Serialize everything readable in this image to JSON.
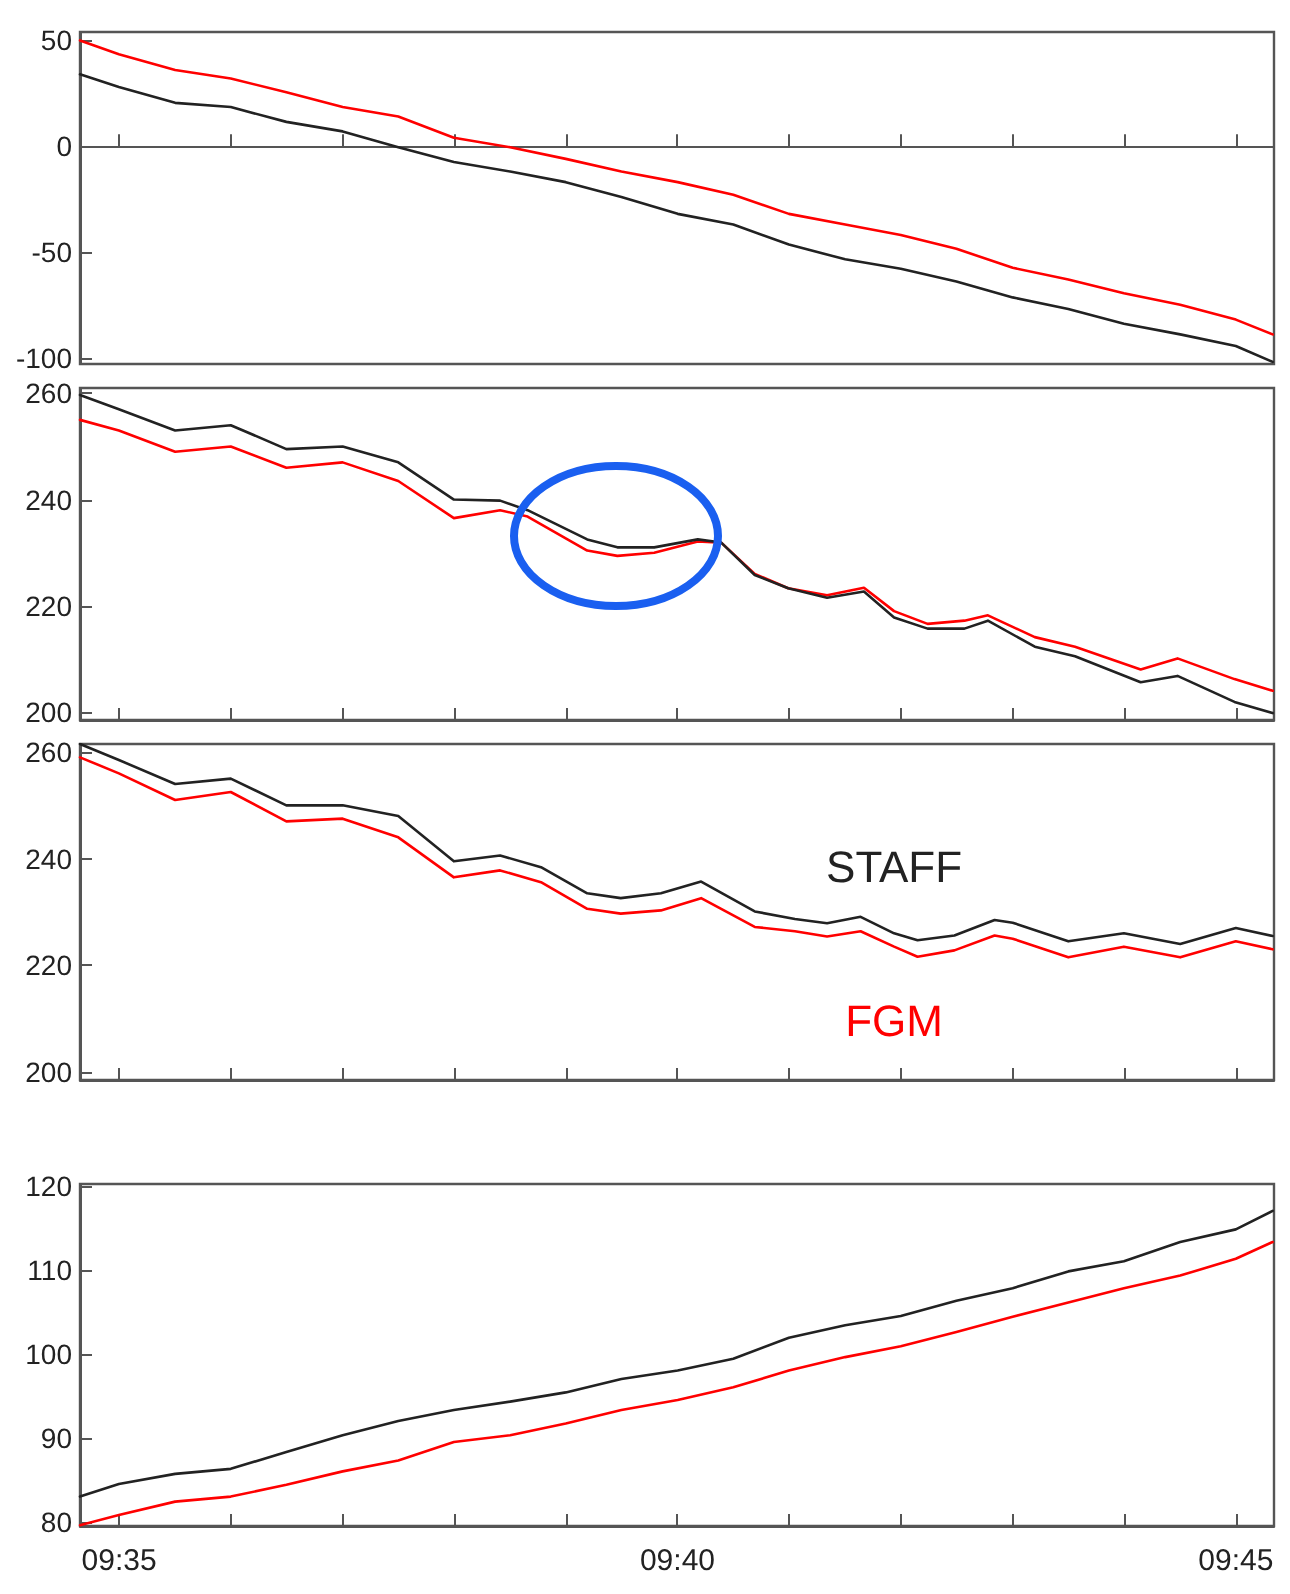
{
  "chart_data": [
    {
      "type": "line",
      "x": [
        9.5775,
        9.5833,
        9.5917,
        9.6,
        9.6083,
        9.6167,
        9.625,
        9.6333,
        9.6417,
        9.65,
        9.6583,
        9.6667,
        9.675,
        9.6833,
        9.6917,
        9.7,
        9.7083,
        9.7167,
        9.725,
        9.7333,
        9.7417,
        9.75,
        9.7555
      ],
      "series": [
        {
          "color": "#ff0000",
          "values": [
            50,
            43.5,
            36,
            32,
            25.5,
            18.5,
            14,
            4,
            -0.5,
            -6,
            -12,
            -17,
            -23,
            -32,
            -37,
            -42,
            -48.5,
            -57.5,
            -63,
            -69.5,
            -75,
            -82,
            -89
          ]
        },
        {
          "color": "#222222",
          "values": [
            34,
            28,
            20.5,
            18.5,
            11.5,
            7,
            -0.5,
            -7.5,
            -12,
            -17,
            -24,
            -32,
            -37,
            -46.5,
            -53.5,
            -58,
            -64,
            -71.5,
            -77,
            -84,
            -89,
            -94.5,
            -102
          ]
        }
      ],
      "xlim": [
        9.5775,
        9.7557
      ],
      "xticks": [
        {
          "value": 9.58333,
          "label": null
        },
        {
          "value": 9.6,
          "label": null
        },
        {
          "value": 9.61667,
          "label": null
        },
        {
          "value": 9.63333,
          "label": null
        },
        {
          "value": 9.65,
          "label": null
        },
        {
          "value": 9.66667,
          "label": null
        },
        {
          "value": 9.68333,
          "label": null
        },
        {
          "value": 9.7,
          "label": null
        },
        {
          "value": 9.71667,
          "label": null
        },
        {
          "value": 9.73333,
          "label": null
        },
        {
          "value": 9.75,
          "label": null
        }
      ],
      "ylim": [
        -103,
        54
      ],
      "yticks": [
        -100,
        -50,
        0,
        50
      ],
      "tick_labels": "y"
    },
    {
      "type": "line",
      "x": [
        9.5775,
        9.5833,
        9.5917,
        9.6,
        9.6083,
        9.6167,
        9.625,
        9.6333,
        9.6402,
        9.6443,
        9.6532,
        9.6577,
        9.6632,
        9.6697,
        9.6732,
        9.6782,
        9.6832,
        9.689,
        9.6945,
        9.699,
        9.704,
        9.7095,
        9.713,
        9.72,
        9.726,
        9.7358,
        9.7413,
        9.7498,
        9.7555
      ],
      "series": [
        {
          "color": "#ff0000",
          "values": [
            255,
            253,
            249,
            250,
            246,
            247,
            243.5,
            236.5,
            238,
            236.8,
            230.4,
            229.4,
            230,
            232.1,
            231.9,
            226,
            223.3,
            222,
            223.4,
            219,
            216.6,
            217.2,
            218.2,
            214.1,
            212.3,
            208,
            210.1,
            206.2,
            204
          ]
        },
        {
          "color": "#222222",
          "values": [
            259.7,
            257,
            253,
            254,
            249.5,
            250,
            247,
            240,
            239.8,
            238,
            232.5,
            231,
            231,
            232.5,
            231.9,
            225.8,
            223.3,
            221.5,
            222.7,
            217.8,
            215.7,
            215.7,
            217.2,
            212.3,
            210.5,
            205.6,
            206.8,
            201.9,
            199.8
          ]
        }
      ],
      "xlim": [
        9.5775,
        9.7557
      ],
      "xticks": [
        {
          "value": 9.58333,
          "label": null
        },
        {
          "value": 9.6,
          "label": null
        },
        {
          "value": 9.61667,
          "label": null
        },
        {
          "value": 9.63333,
          "label": null
        },
        {
          "value": 9.65,
          "label": null
        },
        {
          "value": 9.66667,
          "label": null
        },
        {
          "value": 9.68333,
          "label": null
        },
        {
          "value": 9.7,
          "label": null
        },
        {
          "value": 9.71667,
          "label": null
        },
        {
          "value": 9.73333,
          "label": null
        },
        {
          "value": 9.75,
          "label": null
        }
      ],
      "ylim": [
        198.5,
        261
      ],
      "yticks": [
        200,
        220,
        240,
        260
      ],
      "tick_labels": "y"
    },
    {
      "type": "line",
      "x": [
        9.5775,
        9.5833,
        9.5917,
        9.6,
        9.6083,
        9.6167,
        9.625,
        9.6333,
        9.6402,
        9.6463,
        9.6532,
        9.6582,
        9.6642,
        9.6702,
        9.6782,
        9.6842,
        9.689,
        9.694,
        9.699,
        9.7025,
        9.708,
        9.714,
        9.7167,
        9.725,
        9.7333,
        9.7417,
        9.75,
        9.7555
      ],
      "series": [
        {
          "name": "FGM",
          "color": "#ff0000",
          "values": [
            259,
            256,
            251,
            252.5,
            247,
            247.5,
            244,
            236.5,
            237.8,
            235.6,
            230.6,
            229.7,
            230.3,
            232.6,
            227.2,
            226.4,
            225.4,
            226.4,
            223.5,
            221.6,
            222.8,
            225.6,
            225,
            221.5,
            223.5,
            221.5,
            224.5,
            223
          ]
        },
        {
          "name": "STAFF",
          "color": "#222222",
          "values": [
            261.5,
            258.5,
            254,
            255,
            250,
            250,
            248,
            239.5,
            240.6,
            238.4,
            233.5,
            232.6,
            233.5,
            235.7,
            230.1,
            228.7,
            227.9,
            229.1,
            226,
            224.7,
            225.6,
            228.5,
            228,
            224.5,
            226,
            224,
            227,
            225.5
          ]
        }
      ],
      "xlim": [
        9.5775,
        9.7557
      ],
      "xticks": [
        {
          "value": 9.58333,
          "label": null
        },
        {
          "value": 9.6,
          "label": null
        },
        {
          "value": 9.61667,
          "label": null
        },
        {
          "value": 9.63333,
          "label": null
        },
        {
          "value": 9.65,
          "label": null
        },
        {
          "value": 9.66667,
          "label": null
        },
        {
          "value": 9.68333,
          "label": null
        },
        {
          "value": 9.7,
          "label": null
        },
        {
          "value": 9.71667,
          "label": null
        },
        {
          "value": 9.73333,
          "label": null
        },
        {
          "value": 9.75,
          "label": null
        }
      ],
      "ylim": [
        198.5,
        261.5
      ],
      "yticks": [
        200,
        220,
        240,
        260
      ],
      "tick_labels": "y"
    },
    {
      "type": "line",
      "x": [
        9.5775,
        9.5833,
        9.5917,
        9.6,
        9.6083,
        9.6167,
        9.625,
        9.6333,
        9.6417,
        9.65,
        9.6583,
        9.6667,
        9.675,
        9.6833,
        9.6917,
        9.7,
        9.7083,
        9.7167,
        9.725,
        9.7333,
        9.7417,
        9.75,
        9.7555
      ],
      "series": [
        {
          "color": "#ff0000",
          "values": [
            79.6,
            80.8,
            82.4,
            83,
            84.4,
            86,
            87.3,
            89.5,
            90.3,
            91.7,
            93.3,
            94.5,
            96,
            98,
            99.6,
            100.9,
            102.6,
            104.4,
            106.1,
            107.8,
            109.3,
            111.3,
            113.3
          ]
        },
        {
          "color": "#222222",
          "values": [
            83,
            84.5,
            85.7,
            86.3,
            88.3,
            90.3,
            92,
            93.3,
            94.3,
            95.4,
            97,
            98,
            99.4,
            101.9,
            103.4,
            104.5,
            106.3,
            107.8,
            109.8,
            111,
            113.3,
            114.8,
            117
          ]
        }
      ],
      "xlim": [
        9.5775,
        9.7557
      ],
      "xticks": [
        {
          "value": 9.58333,
          "label": "09:35"
        },
        {
          "value": 9.6,
          "label": null
        },
        {
          "value": 9.61667,
          "label": null
        },
        {
          "value": 9.63333,
          "label": null
        },
        {
          "value": 9.65,
          "label": null
        },
        {
          "value": 9.66667,
          "label": "09:40"
        },
        {
          "value": 9.68333,
          "label": null
        },
        {
          "value": 9.7,
          "label": null
        },
        {
          "value": 9.71667,
          "label": null
        },
        {
          "value": 9.73333,
          "label": null
        },
        {
          "value": 9.75,
          "label": "09:45"
        }
      ],
      "ylim": [
        79.5,
        120.2
      ],
      "yticks": [
        80,
        90,
        100,
        110,
        120
      ]
    }
  ]
}
